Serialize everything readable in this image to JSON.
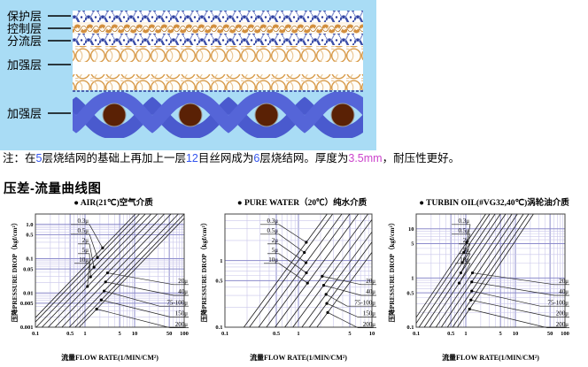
{
  "diagram": {
    "bg_color": "#a9dcf5",
    "weave_color": "#4a5ace",
    "circle_color": "#5a2105",
    "mesh_ring_color": "#d28f3e",
    "labels": [
      "保护层",
      "控制层",
      "分流层",
      "加强层",
      "加强层"
    ]
  },
  "note": {
    "segments": [
      {
        "text": "注：在",
        "color": "#000000"
      },
      {
        "text": "5",
        "color": "#3355ee"
      },
      {
        "text": "层烧结网的基础上再加上一层",
        "color": "#000000"
      },
      {
        "text": "12",
        "color": "#3355ee"
      },
      {
        "text": "目丝网成为",
        "color": "#000000"
      },
      {
        "text": "6",
        "color": "#3355ee"
      },
      {
        "text": "层烧结网。厚度为",
        "color": "#000000"
      },
      {
        "text": "3.5mm",
        "color": "#cc44cc"
      },
      {
        "text": "，耐压性更好。",
        "color": "#000000"
      }
    ]
  },
  "section_title": "压差-流量曲线图",
  "chart_colors": {
    "grid_minor": "#c9c6ea",
    "grid_major": "#8d8ccc",
    "frame": "#444444",
    "line": "#1a1a1a"
  },
  "chart_data": [
    {
      "type": "line",
      "bullet": "●",
      "title": "AIR(21℃)空气介质",
      "xlabel": "流量FLOW RATE(1/MIN/CM²)",
      "ylabel": "压降PRESSURE DROP（kgf/cm²）",
      "xlim": [
        0.1,
        100
      ],
      "ylim": [
        0.001,
        2
      ],
      "x_ticks": [
        {
          "v": 0.1,
          "label": "0.1"
        },
        {
          "v": 0.5,
          "label": "0.5"
        },
        {
          "v": 1,
          "label": "1"
        },
        {
          "v": 5,
          "label": "5"
        },
        {
          "v": 10,
          "label": "10"
        },
        {
          "v": 50,
          "label": "50"
        },
        {
          "v": 100,
          "label": "100"
        }
      ],
      "y_ticks": [
        {
          "v": 1,
          "label": "1.0"
        },
        {
          "v": 0.5,
          "label": "0.5"
        },
        {
          "v": 0.1,
          "label": "0.1"
        },
        {
          "v": 0.05,
          "label": "0.05"
        },
        {
          "v": 0.01,
          "label": "0.01"
        },
        {
          "v": 0.005,
          "label": "0.005"
        },
        {
          "v": 0.001,
          "label": "0.001"
        }
      ],
      "slope": 1.5,
      "series": [
        {
          "name": "0.3μ",
          "p_at_flow_1": 0.06
        },
        {
          "name": "0.5μ",
          "p_at_flow_1": 0.045
        },
        {
          "name": "2μ",
          "p_at_flow_1": 0.03
        },
        {
          "name": "5μ",
          "p_at_flow_1": 0.02
        },
        {
          "name": "10μ",
          "p_at_flow_1": 0.013
        },
        {
          "name": "20μ",
          "p_at_flow_1": 0.008
        },
        {
          "name": "40μ",
          "p_at_flow_1": 0.005
        },
        {
          "name": "75-100μ",
          "p_at_flow_1": 0.003
        },
        {
          "name": "150μ",
          "p_at_flow_1": 0.002
        },
        {
          "name": "200μ",
          "p_at_flow_1": 0.0015
        }
      ]
    },
    {
      "type": "line",
      "bullet": "●",
      "title": "PURE WATER（20℃）纯水介质",
      "xlabel": "流量FLOW RATE(1/MIN/CM²)",
      "ylabel": "压降PRESSURE DROP（kgf/cm²）",
      "xlim": [
        0.1,
        10
      ],
      "ylim": [
        0.1,
        5
      ],
      "x_ticks": [
        {
          "v": 0.1,
          "label": "0.1"
        },
        {
          "v": 0.5,
          "label": "0.5"
        },
        {
          "v": 1,
          "label": "1"
        },
        {
          "v": 5,
          "label": "5"
        },
        {
          "v": 10,
          "label": "10"
        }
      ],
      "y_ticks": [
        {
          "v": 1,
          "label": "1"
        },
        {
          "v": 0.5,
          "label": "0.5"
        },
        {
          "v": 0.1,
          "label": "0.1"
        }
      ],
      "slope": 1.5,
      "series": [
        {
          "name": "0.3μ",
          "p_at_flow_1": 1.3
        },
        {
          "name": "0.5μ",
          "p_at_flow_1": 1.0
        },
        {
          "name": "2μ",
          "p_at_flow_1": 0.65
        },
        {
          "name": "5μ",
          "p_at_flow_1": 0.45
        },
        {
          "name": "10μ",
          "p_at_flow_1": 0.3
        },
        {
          "name": "20μ",
          "p_at_flow_1": 0.19
        },
        {
          "name": "40μ",
          "p_at_flow_1": 0.13
        },
        {
          "name": "75-100μ",
          "p_at_flow_1": 0.085
        },
        {
          "name": "150μ",
          "p_at_flow_1": 0.06
        },
        {
          "name": "200μ",
          "p_at_flow_1": 0.042
        }
      ]
    },
    {
      "type": "line",
      "bullet": "●",
      "title": "TURBIN OIL(#VG32,40℃)涡轮油介质",
      "xlabel": "流量FLOW RATE(1/MIN/CM²)",
      "ylabel": "压降PRESSURE DROP（kgf/cm²）",
      "xlim": [
        0.1,
        100
      ],
      "ylim": [
        0.1,
        20
      ],
      "x_ticks": [
        {
          "v": 0.1,
          "label": "0.1"
        },
        {
          "v": 0.5,
          "label": "0.5"
        },
        {
          "v": 1,
          "label": "1"
        },
        {
          "v": 5,
          "label": "5"
        },
        {
          "v": 10,
          "label": "10"
        },
        {
          "v": 50,
          "label": "50"
        },
        {
          "v": 100,
          "label": "100"
        }
      ],
      "y_ticks": [
        {
          "v": 10,
          "label": "10"
        },
        {
          "v": 5,
          "label": "5"
        },
        {
          "v": 1,
          "label": "1"
        },
        {
          "v": 0.5,
          "label": "0.5"
        },
        {
          "v": 0.1,
          "label": "0.1"
        }
      ],
      "slope": 1.5,
      "series": [
        {
          "name": "0.3μ",
          "p_at_flow_1": 5.0
        },
        {
          "name": "0.5μ",
          "p_at_flow_1": 3.8
        },
        {
          "name": "2μ",
          "p_at_flow_1": 2.6
        },
        {
          "name": "5μ",
          "p_at_flow_1": 1.8
        },
        {
          "name": "10μ",
          "p_at_flow_1": 1.25
        },
        {
          "name": "20μ",
          "p_at_flow_1": 0.8
        },
        {
          "name": "40μ",
          "p_at_flow_1": 0.55
        },
        {
          "name": "75-100μ",
          "p_at_flow_1": 0.36
        },
        {
          "name": "200μ",
          "p_at_flow_1": 0.25
        },
        {
          "name": "200μ ",
          "p_at_flow_1": 0.18
        }
      ]
    }
  ]
}
